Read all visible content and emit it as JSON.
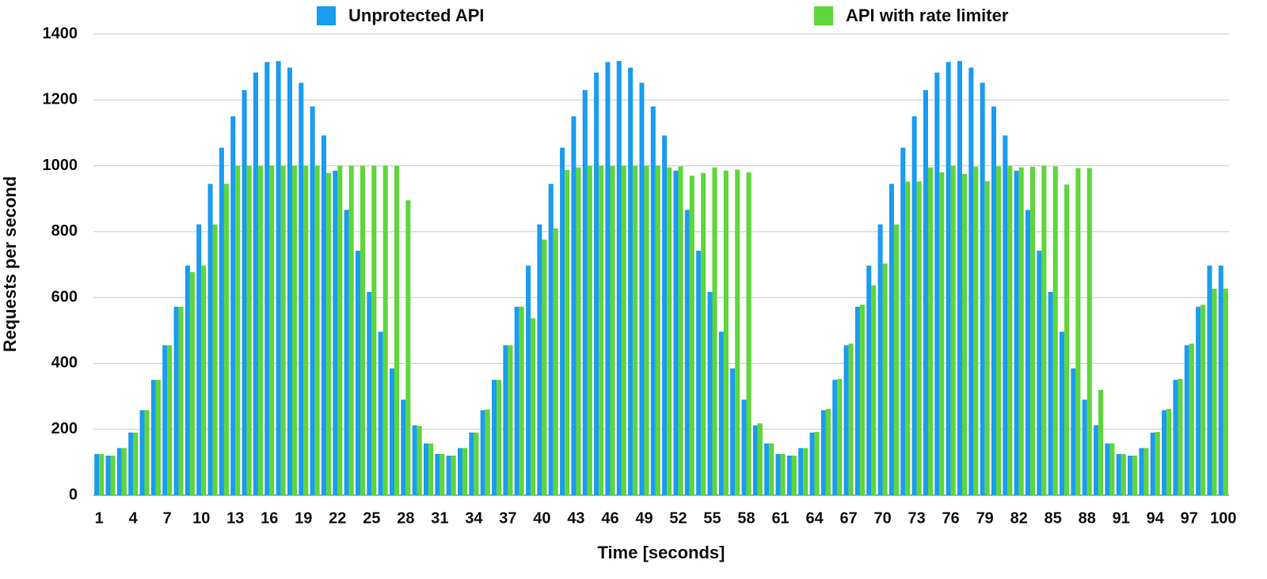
{
  "chart_data": {
    "type": "bar",
    "x_label": "Time [seconds]",
    "y_label": "Requests per second",
    "categories": [
      "1",
      null,
      null,
      "4",
      null,
      null,
      "7",
      null,
      null,
      "10",
      null,
      null,
      "13",
      null,
      null,
      "16",
      null,
      null,
      "19",
      null,
      null,
      "22",
      null,
      null,
      "25",
      null,
      null,
      "28",
      null,
      null,
      "31",
      null,
      null,
      "34",
      null,
      null,
      "37",
      null,
      null,
      "40",
      null,
      null,
      "43",
      null,
      null,
      "46",
      null,
      null,
      "49",
      null,
      null,
      "52",
      null,
      null,
      "55",
      null,
      null,
      "58",
      null,
      null,
      "61",
      null,
      null,
      "64",
      null,
      null,
      "67",
      null,
      null,
      "70",
      null,
      null,
      "73",
      null,
      null,
      "76",
      null,
      null,
      "79",
      null,
      null,
      "82",
      null,
      null,
      "85",
      null,
      null,
      "88",
      null,
      null,
      "91",
      null,
      null,
      "94",
      null,
      null,
      "97",
      null,
      null,
      "100"
    ],
    "series": [
      {
        "name": "Unprotected API",
        "color": "#1a9cf0",
        "values": [
          125,
          120,
          143,
          190,
          258,
          350,
          455,
          572,
          697,
          822,
          945,
          1055,
          1150,
          1230,
          1283,
          1315,
          1318,
          1298,
          1252,
          1180,
          1092,
          985,
          866,
          742,
          617,
          496,
          385,
          290,
          212,
          157,
          125,
          120,
          143,
          190,
          258,
          350,
          455,
          572,
          697,
          822,
          945,
          1055,
          1150,
          1230,
          1283,
          1315,
          1318,
          1298,
          1252,
          1180,
          1092,
          985,
          866,
          742,
          617,
          496,
          385,
          290,
          212,
          157,
          125,
          120,
          143,
          190,
          258,
          350,
          455,
          572,
          697,
          822,
          945,
          1055,
          1150,
          1230,
          1283,
          1315,
          1318,
          1298,
          1252,
          1180,
          1092,
          985,
          866,
          742,
          617,
          496,
          385,
          290,
          212,
          157,
          125,
          120,
          143,
          190,
          258,
          350,
          455,
          572,
          697,
          697
        ]
      },
      {
        "name": "API with rate limiter",
        "color": "#5ed63a",
        "values": [
          125,
          120,
          143,
          190,
          258,
          350,
          455,
          572,
          677,
          697,
          822,
          945,
          1000,
          1000,
          1000,
          1000,
          1000,
          1000,
          1000,
          1000,
          978,
          1000,
          1000,
          1000,
          1000,
          1000,
          1000,
          895,
          210,
          157,
          125,
          120,
          143,
          190,
          260,
          350,
          455,
          572,
          537,
          776,
          810,
          987,
          995,
          1000,
          1000,
          1000,
          1000,
          1000,
          1000,
          1000,
          995,
          998,
          970,
          978,
          995,
          985,
          988,
          980,
          218,
          157,
          125,
          120,
          143,
          192,
          262,
          353,
          460,
          578,
          637,
          703,
          822,
          952,
          952,
          995,
          980,
          1000,
          975,
          997,
          953,
          998,
          1000,
          995,
          997,
          1000,
          998,
          943,
          993,
          993,
          320,
          157,
          125,
          120,
          143,
          192,
          262,
          353,
          460,
          578,
          627,
          627
        ]
      }
    ],
    "ylim": [
      0,
      1400
    ],
    "yticks": [
      0,
      200,
      400,
      600,
      800,
      1000,
      1200,
      1400
    ],
    "grid": true
  }
}
